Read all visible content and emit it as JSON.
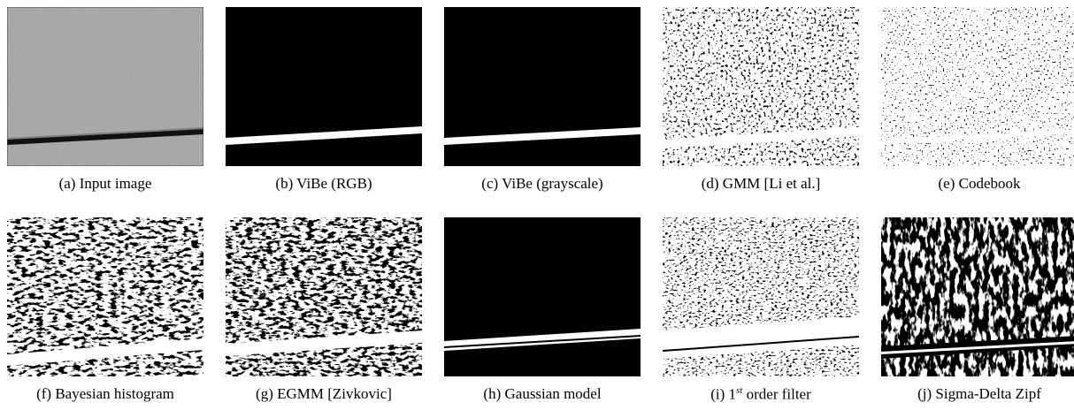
{
  "figure": {
    "panels": [
      {
        "id": "a",
        "caption": "(a) Input image"
      },
      {
        "id": "b",
        "caption": "(b) ViBe (RGB)"
      },
      {
        "id": "c",
        "caption": "(c) ViBe (grayscale)"
      },
      {
        "id": "d",
        "caption": "(d) GMM [Li et al.]"
      },
      {
        "id": "e",
        "caption": "(e) Codebook"
      },
      {
        "id": "f",
        "caption": "(f) Bayesian histogram"
      },
      {
        "id": "g",
        "caption": "(g) EGMM [Zivkovic]"
      },
      {
        "id": "h",
        "caption": "(h) Gaussian model"
      },
      {
        "id": "i",
        "caption_prefix": "(i) 1",
        "caption_sup": "st",
        "caption_suffix": " order filter"
      },
      {
        "id": "j",
        "caption": "(j) Sigma-Delta Zipf"
      }
    ]
  }
}
